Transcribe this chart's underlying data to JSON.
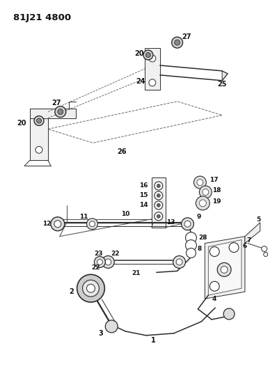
{
  "title": "81J21 4800",
  "bg_color": "#ffffff",
  "line_color": "#2a2a2a",
  "label_color": "#111111",
  "title_fontsize": 9.5,
  "fig_width": 3.98,
  "fig_height": 5.33,
  "dpi": 100
}
